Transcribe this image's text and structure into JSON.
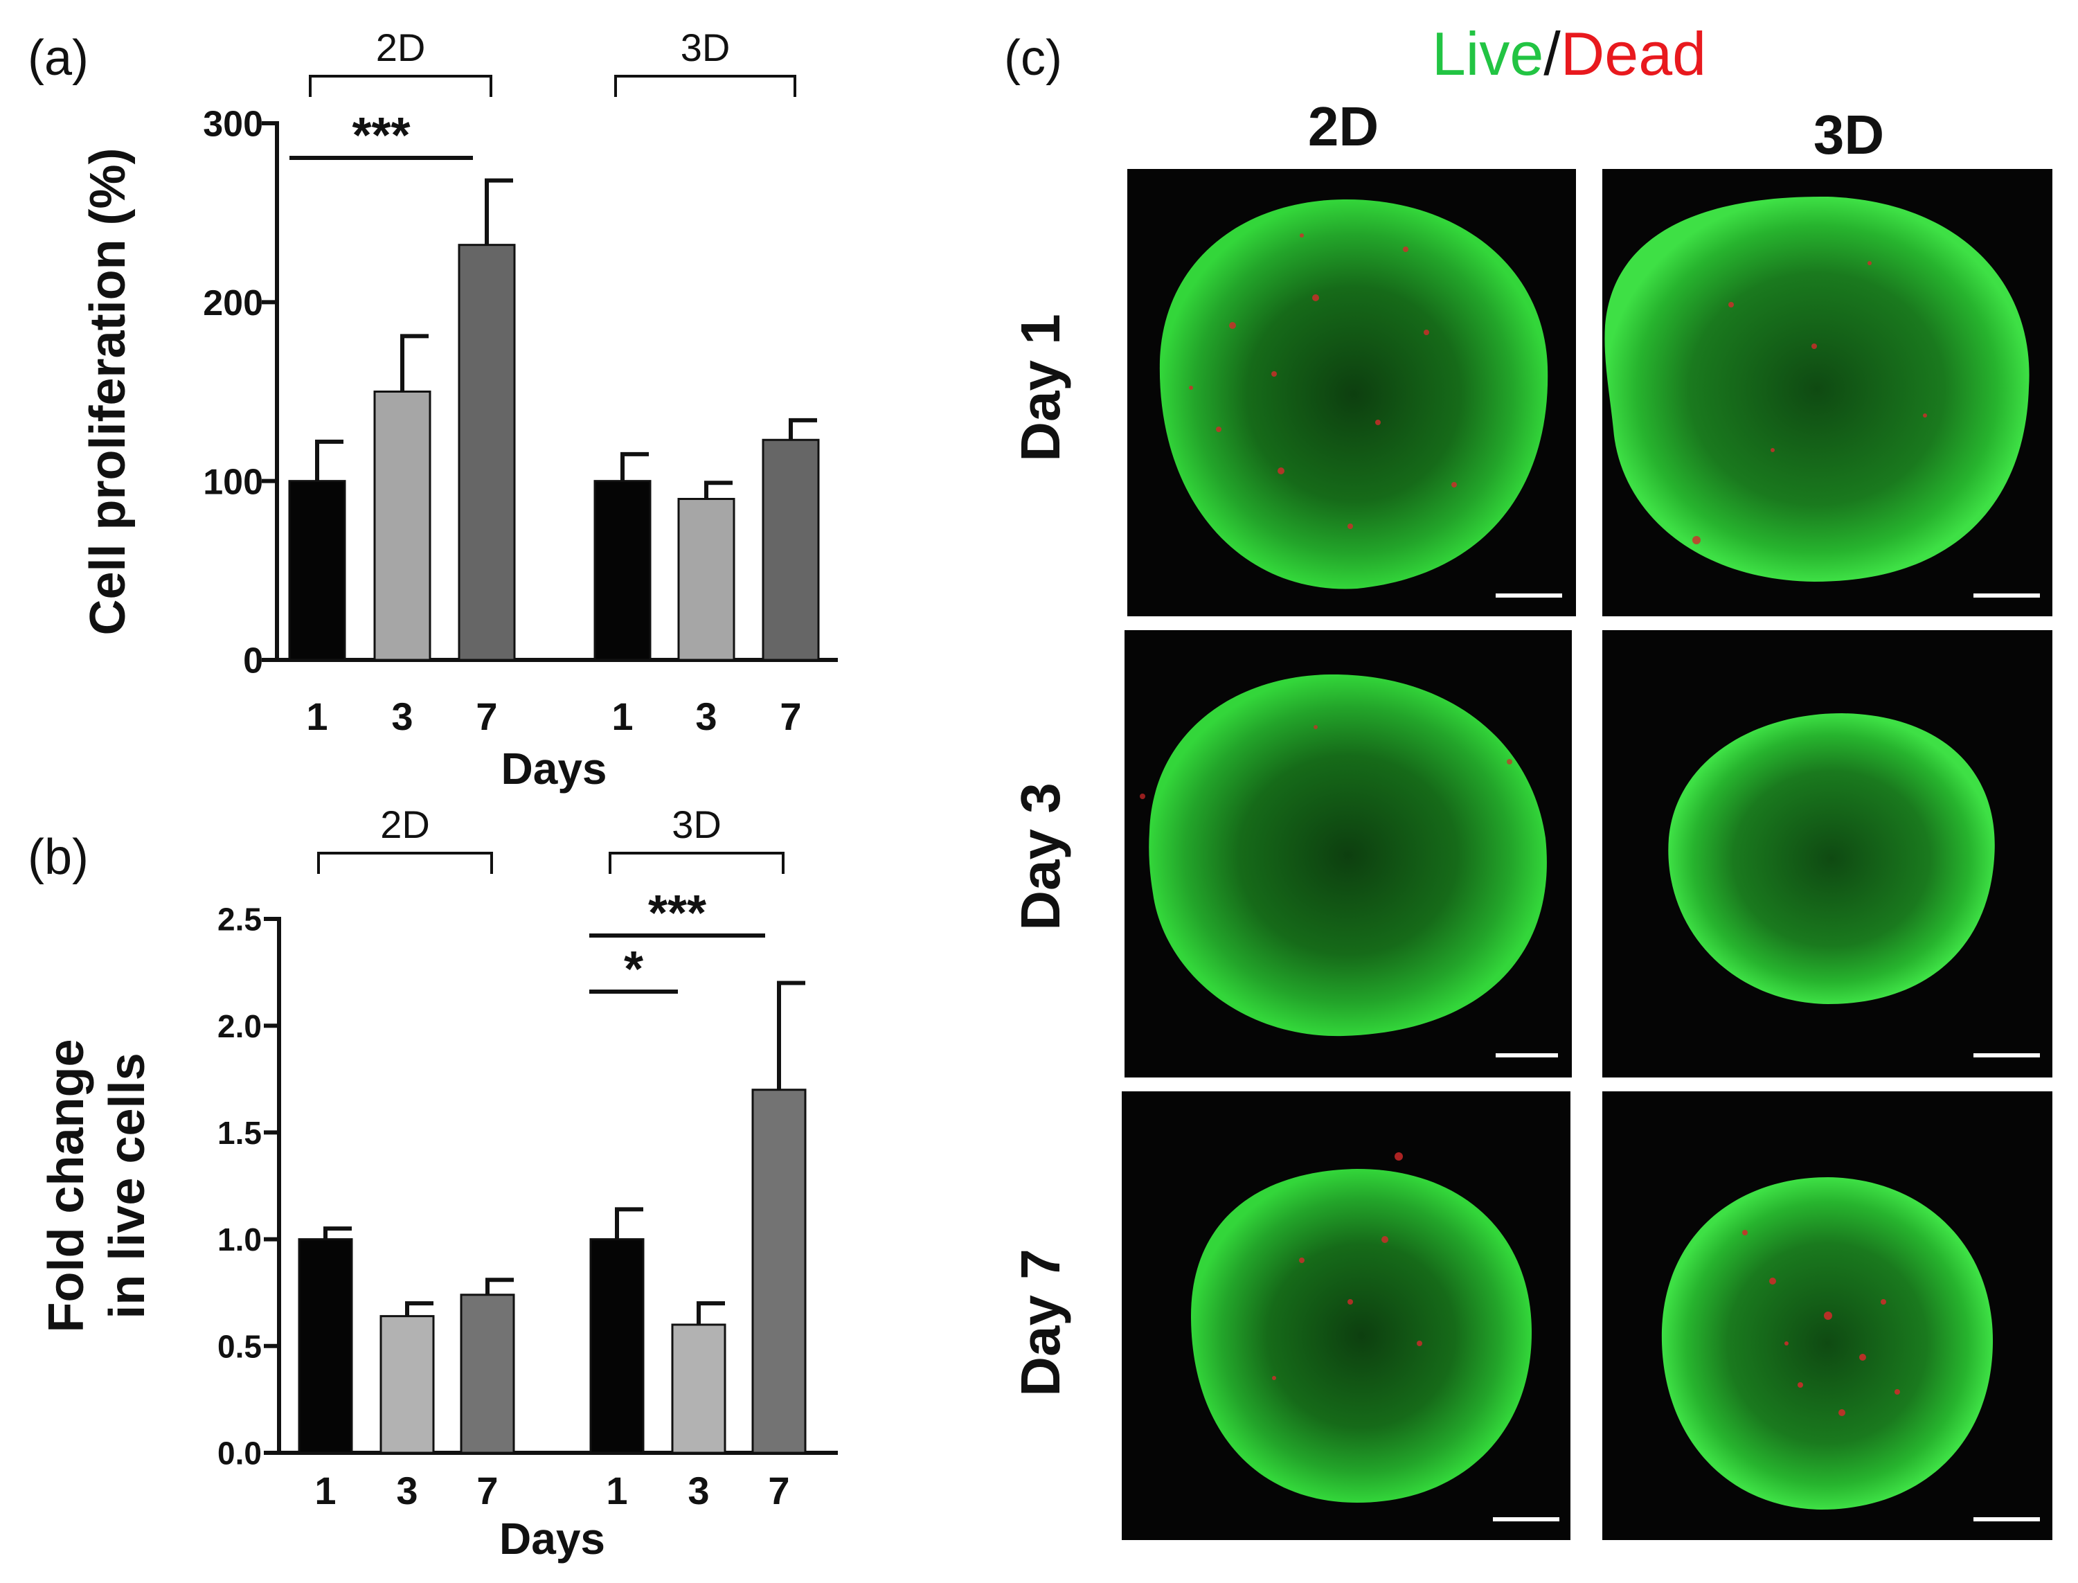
{
  "chart_data": [
    {
      "type": "bar",
      "panel_label": "(a)",
      "groups": [
        "2D",
        "3D"
      ],
      "categories": [
        "1",
        "3",
        "7"
      ],
      "xlabel": "Days",
      "ylabel": "Cell proliferation (%)",
      "ylim": [
        0,
        300
      ],
      "yticks": [
        0,
        100,
        200,
        300
      ],
      "ytick_labels": [
        "0",
        "100",
        "200",
        "300"
      ],
      "bar_colors": [
        "#050505",
        "#a6a6a6",
        "#666666"
      ],
      "series": [
        {
          "group": "2D",
          "values": [
            100,
            150,
            232
          ],
          "errors": [
            22,
            31,
            36
          ]
        },
        {
          "group": "3D",
          "values": [
            100,
            90,
            123
          ],
          "errors": [
            15,
            9,
            11
          ]
        }
      ],
      "significance": [
        {
          "group": "2D",
          "from": "1",
          "to": "7",
          "label": "***"
        }
      ]
    },
    {
      "type": "bar",
      "panel_label": "(b)",
      "groups": [
        "2D",
        "3D"
      ],
      "categories": [
        "1",
        "3",
        "7"
      ],
      "xlabel": "Days",
      "ylabel": [
        "Fold change",
        "in live cells"
      ],
      "ylim": [
        0,
        2.5
      ],
      "yticks": [
        0,
        0.5,
        1.0,
        1.5,
        2.0,
        2.5
      ],
      "ytick_labels": [
        "0.0",
        "0.5",
        "1.0",
        "1.5",
        "2.0",
        "2.5"
      ],
      "bar_colors": [
        "#050505",
        "#b2b2b2",
        "#737373"
      ],
      "series": [
        {
          "group": "2D",
          "values": [
            1.0,
            0.64,
            0.74
          ],
          "errors": [
            0.05,
            0.06,
            0.07
          ]
        },
        {
          "group": "3D",
          "values": [
            1.0,
            0.6,
            1.7
          ],
          "errors": [
            0.14,
            0.1,
            0.5
          ]
        }
      ],
      "significance": [
        {
          "group": "3D",
          "from": "1",
          "to": "7",
          "label": "***"
        },
        {
          "group": "3D",
          "from": "1",
          "to": "3",
          "label": "*"
        }
      ]
    }
  ],
  "micrographs": {
    "panel_label": "(c)",
    "stain_title": {
      "live": "Live",
      "sep": "/",
      "dead": "Dead"
    },
    "stain_colors": {
      "live": "#22c443",
      "dead": "#e8191e"
    },
    "columns": [
      "2D",
      "3D"
    ],
    "rows": [
      "Day 1",
      "Day 3",
      "Day 7"
    ],
    "description_icon": "spheroid-fluorescence-image"
  }
}
